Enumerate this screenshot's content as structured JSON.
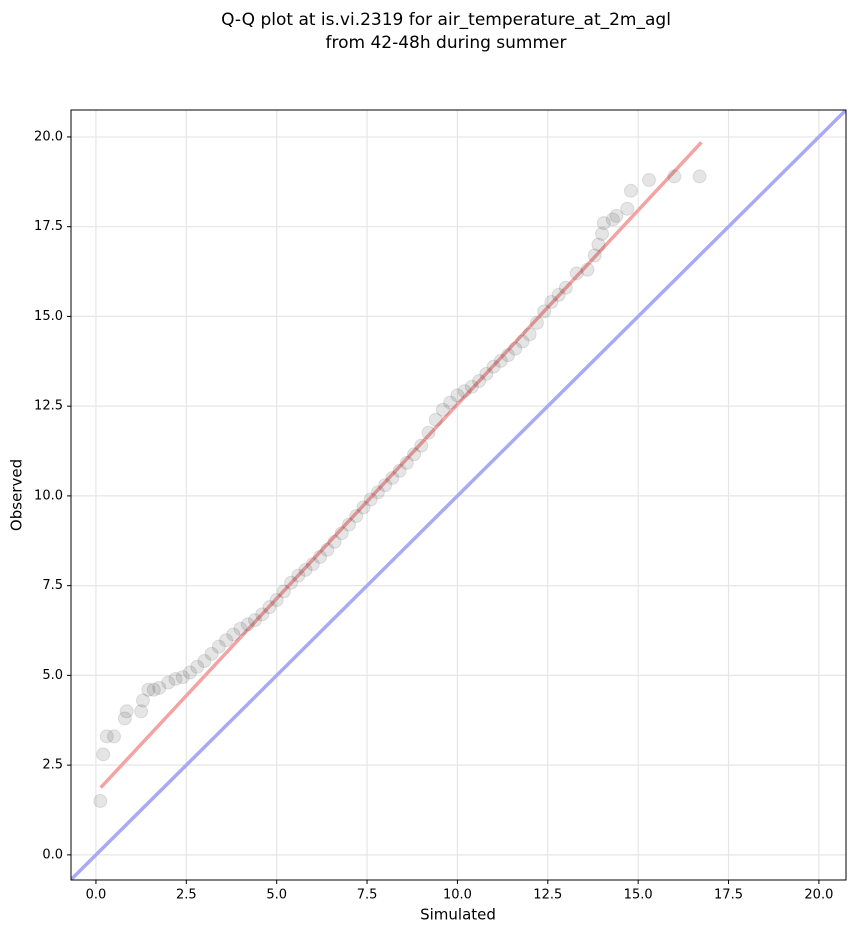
{
  "chart_data": {
    "type": "scatter",
    "title": [
      "Q-Q plot at is.vi.2319 for air_temperature_at_2m_agl",
      "from 42-48h during summer"
    ],
    "x_label": "Simulated",
    "y_label": "Observed",
    "xlim": [
      -0.69,
      20.75
    ],
    "ylim": [
      -0.7,
      20.75
    ],
    "xticks": [
      {
        "value": 0,
        "label": "0.0"
      },
      2.5,
      {
        "value": 5,
        "label": "5.0"
      },
      7.5,
      {
        "value": 10,
        "label": "10.0"
      },
      12.5,
      {
        "value": 15,
        "label": "15.0"
      },
      17.5,
      {
        "value": 20,
        "label": "20.0"
      }
    ],
    "yticks": [
      {
        "value": 0,
        "label": "0.0"
      },
      2.5,
      {
        "value": 5,
        "label": "5.0"
      },
      7.5,
      {
        "value": 10,
        "label": "10.0"
      },
      12.5,
      {
        "value": 15,
        "label": "15.0"
      },
      17.5,
      {
        "value": 20,
        "label": "20.0"
      }
    ],
    "grid": true,
    "series": [
      {
        "color": "#333333",
        "x": [
          0.12,
          0.2,
          0.3,
          0.5,
          0.8,
          0.85,
          1.25,
          1.3,
          1.45,
          1.6,
          1.75,
          2.0,
          2.2,
          2.4,
          2.6,
          2.8,
          3.0,
          3.2,
          3.4,
          3.6,
          3.8,
          4.0,
          4.2,
          4.4,
          4.6,
          4.8,
          5.0,
          5.2,
          5.4,
          5.6,
          5.8,
          6.0,
          6.2,
          6.4,
          6.6,
          6.8,
          7.0,
          7.2,
          7.4,
          7.6,
          7.8,
          8.0,
          8.2,
          8.4,
          8.6,
          8.8,
          9.0,
          9.2,
          9.4,
          9.6,
          9.8,
          10.0,
          10.2,
          10.4,
          10.6,
          10.8,
          11.0,
          11.2,
          11.4,
          11.6,
          11.8,
          12.0,
          12.2,
          12.4,
          12.6,
          12.8,
          13.0,
          13.3,
          13.6,
          13.8,
          13.9,
          14.0,
          14.05,
          14.3,
          14.4,
          14.7,
          14.8,
          15.3,
          16.0,
          16.7
        ],
        "values": [
          1.5,
          2.8,
          3.3,
          3.3,
          3.8,
          4.0,
          4.0,
          4.3,
          4.6,
          4.6,
          4.65,
          4.8,
          4.9,
          4.95,
          5.08,
          5.24,
          5.4,
          5.6,
          5.8,
          5.98,
          6.14,
          6.3,
          6.42,
          6.54,
          6.7,
          6.9,
          7.1,
          7.34,
          7.58,
          7.78,
          7.94,
          8.1,
          8.3,
          8.5,
          8.72,
          8.96,
          9.2,
          9.44,
          9.68,
          9.9,
          10.1,
          10.3,
          10.5,
          10.7,
          10.92,
          11.16,
          11.4,
          11.76,
          12.12,
          12.4,
          12.6,
          12.8,
          12.92,
          13.04,
          13.2,
          13.4,
          13.6,
          13.76,
          13.92,
          14.1,
          14.3,
          14.5,
          14.82,
          15.14,
          15.4,
          15.6,
          15.8,
          16.2,
          16.3,
          16.7,
          17.0,
          17.3,
          17.6,
          17.7,
          17.8,
          18.0,
          18.5,
          18.8,
          18.9,
          18.9
        ]
      }
    ],
    "lines": [
      {
        "color": "#f4a3a3",
        "x": [
          0.13,
          16.75
        ],
        "y": [
          1.87,
          19.85
        ]
      },
      {
        "color": "#a9a9f6",
        "x": [
          -0.69,
          20.75
        ],
        "y": [
          -0.69,
          20.75
        ]
      }
    ]
  }
}
